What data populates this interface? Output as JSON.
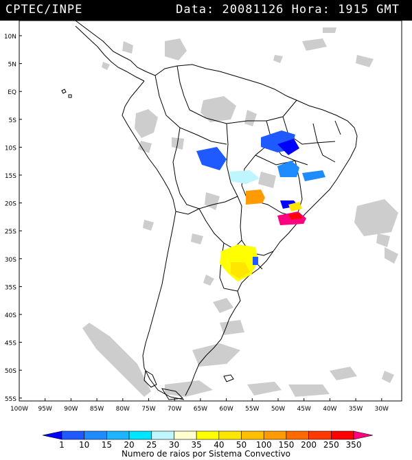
{
  "header": {
    "source": "CPTEC/INPE",
    "data_label": "Data:",
    "date": "20081126",
    "hora_label": "Hora:",
    "time": "1915 GMT"
  },
  "map": {
    "lat_labels": [
      "10N",
      "5N",
      "EQ",
      "5S",
      "10S",
      "15S",
      "20S",
      "25S",
      "30S",
      "35S",
      "40S",
      "45S",
      "50S",
      "55S"
    ],
    "lon_labels": [
      "100W",
      "95W",
      "90W",
      "85W",
      "80W",
      "75W",
      "70W",
      "65W",
      "60W",
      "55W",
      "50W",
      "45W",
      "40W",
      "35W",
      "30W"
    ]
  },
  "legend": {
    "ticks": [
      "1",
      "10",
      "15",
      "20",
      "25",
      "30",
      "35",
      "40",
      "50",
      "100",
      "150",
      "200",
      "250",
      "350"
    ],
    "colors": [
      "#0000ff",
      "#1e5aff",
      "#1e8cff",
      "#1eb4ff",
      "#00e5ff",
      "#bff5ff",
      "#ffffd0",
      "#ffff00",
      "#ffe600",
      "#ffc000",
      "#ff9a00",
      "#ff6a00",
      "#ff3a00",
      "#ff0000",
      "#ff0080"
    ],
    "title": "Numero de raios por Sistema Convectivo"
  }
}
